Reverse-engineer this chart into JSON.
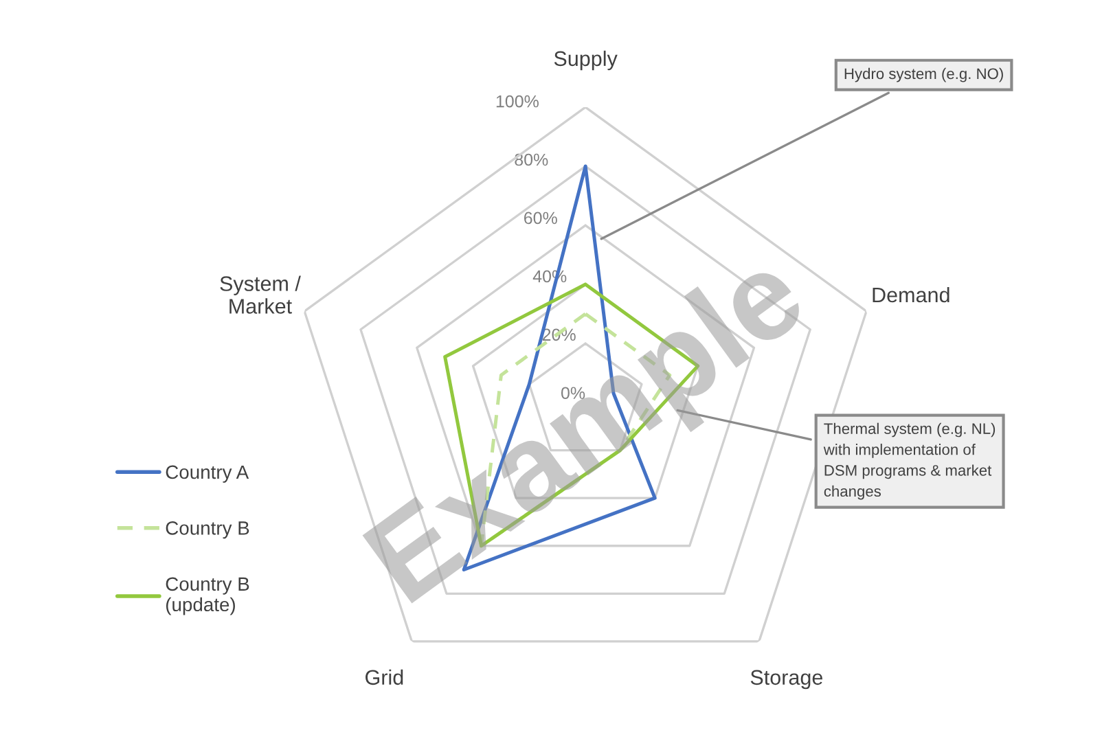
{
  "chart_data": {
    "type": "radar",
    "categories": [
      "Supply",
      "Demand",
      "Storage",
      "Grid",
      "System /\nMarket"
    ],
    "series": [
      {
        "name": "Country A",
        "color": "#4472c4",
        "values": [
          80,
          10,
          40,
          70,
          20
        ],
        "line_style": "solid"
      },
      {
        "name": "Country B",
        "color": "#c4e39a",
        "values": [
          30,
          30,
          20,
          60,
          30
        ],
        "line_style": "dashed"
      },
      {
        "name": "Country B\n(update)",
        "color": "#92c83e",
        "values": [
          40,
          40,
          20,
          60,
          50
        ],
        "line_style": "solid"
      }
    ],
    "ylim": [
      0,
      100
    ],
    "yticks": [
      {
        "value": 0,
        "label": "0%"
      },
      {
        "value": 20,
        "label": "20%"
      },
      {
        "value": 40,
        "label": "40%"
      },
      {
        "value": 60,
        "label": "60%"
      },
      {
        "value": 80,
        "label": "80%"
      },
      {
        "value": 100,
        "label": "100%"
      }
    ],
    "grid": true,
    "legend": "left",
    "marker": "none",
    "annotations": [
      "Hydro system (e.g. NO)",
      "Thermal system (e.g. NL)\nwith implementation of\nDSM programs & market\nchanges",
      "Example"
    ]
  }
}
